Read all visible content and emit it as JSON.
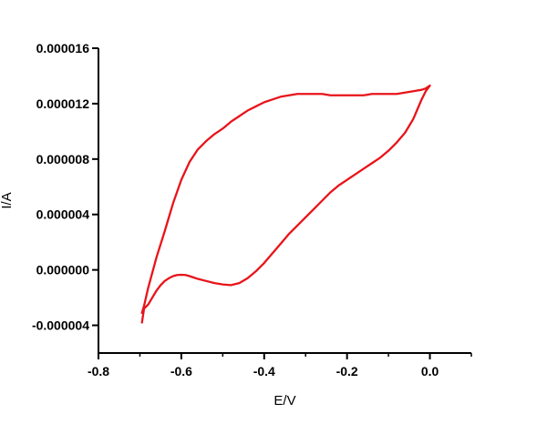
{
  "chart_data": {
    "type": "line",
    "title": "",
    "xlabel": "E/V",
    "ylabel": "I/A",
    "xlim": [
      -0.8,
      0.1
    ],
    "ylim": [
      -6e-06,
      1.6e-05
    ],
    "x_ticks": [
      -0.8,
      -0.6,
      -0.4,
      -0.2,
      0.0
    ],
    "x_tick_labels": [
      "-0.8",
      "-0.6",
      "-0.4",
      "-0.2",
      "0.0"
    ],
    "y_ticks": [
      -4e-06,
      0.0,
      4e-06,
      8e-06,
      1.2e-05,
      1.6e-05
    ],
    "y_tick_labels": [
      "-0.000004",
      "0.000000",
      "0.000004",
      "0.000008",
      "0.000012",
      "0.000016"
    ],
    "grid": false,
    "legend": "none",
    "line_color": "#e8141a",
    "series": [
      {
        "x": [
          -0.695,
          -0.69,
          -0.68,
          -0.67,
          -0.66,
          -0.65,
          -0.64,
          -0.63,
          -0.62,
          -0.61,
          -0.6,
          -0.59,
          -0.58,
          -0.57,
          -0.56,
          -0.54,
          -0.52,
          -0.5,
          -0.48,
          -0.46,
          -0.44,
          -0.42,
          -0.4,
          -0.38,
          -0.36,
          -0.34,
          -0.32,
          -0.3,
          -0.28,
          -0.26,
          -0.24,
          -0.22,
          -0.2,
          -0.18,
          -0.16,
          -0.14,
          -0.12,
          -0.1,
          -0.08,
          -0.06,
          -0.04,
          -0.03,
          -0.02,
          -0.01,
          0.0,
          -0.005,
          -0.01,
          -0.02,
          -0.04,
          -0.06,
          -0.08,
          -0.1,
          -0.12,
          -0.14,
          -0.16,
          -0.18,
          -0.2,
          -0.22,
          -0.24,
          -0.26,
          -0.28,
          -0.3,
          -0.32,
          -0.34,
          -0.36,
          -0.38,
          -0.4,
          -0.42,
          -0.44,
          -0.46,
          -0.48,
          -0.5,
          -0.52,
          -0.54,
          -0.56,
          -0.58,
          -0.6,
          -0.62,
          -0.64,
          -0.66,
          -0.68,
          -0.69,
          -0.695
        ],
        "y": [
          -3.8e-06,
          -2.8e-06,
          -2.5e-06,
          -2e-06,
          -1.5e-06,
          -1.1e-06,
          -8e-07,
          -6e-07,
          -4.5e-07,
          -3.7e-07,
          -3.5e-07,
          -3.7e-07,
          -4.5e-07,
          -5.5e-07,
          -6.5e-07,
          -8e-07,
          -9.5e-07,
          -1.05e-06,
          -1.1e-06,
          -9.5e-07,
          -6e-07,
          -1e-07,
          5e-07,
          1.2e-06,
          1.9e-06,
          2.6e-06,
          3.2e-06,
          3.8e-06,
          4.4e-06,
          5e-06,
          5.6e-06,
          6.1e-06,
          6.5e-06,
          6.9e-06,
          7.3e-06,
          7.7e-06,
          8.1e-06,
          8.6e-06,
          9.2e-06,
          9.9e-06,
          1.09e-05,
          1.16e-05,
          1.23e-05,
          1.29e-05,
          1.33e-05,
          1.32e-05,
          1.31e-05,
          1.3e-05,
          1.29e-05,
          1.28e-05,
          1.27e-05,
          1.27e-05,
          1.27e-05,
          1.27e-05,
          1.26e-05,
          1.26e-05,
          1.26e-05,
          1.26e-05,
          1.26e-05,
          1.27e-05,
          1.27e-05,
          1.27e-05,
          1.27e-05,
          1.26e-05,
          1.25e-05,
          1.23e-05,
          1.21e-05,
          1.18e-05,
          1.15e-05,
          1.11e-05,
          1.07e-05,
          1.02e-05,
          9.8e-06,
          9.3e-06,
          8.7e-06,
          7.8e-06,
          6.5e-06,
          4.8e-06,
          2.8e-06,
          9e-07,
          -1.3e-06,
          -2.6e-06,
          -3.1e-06
        ]
      }
    ]
  }
}
